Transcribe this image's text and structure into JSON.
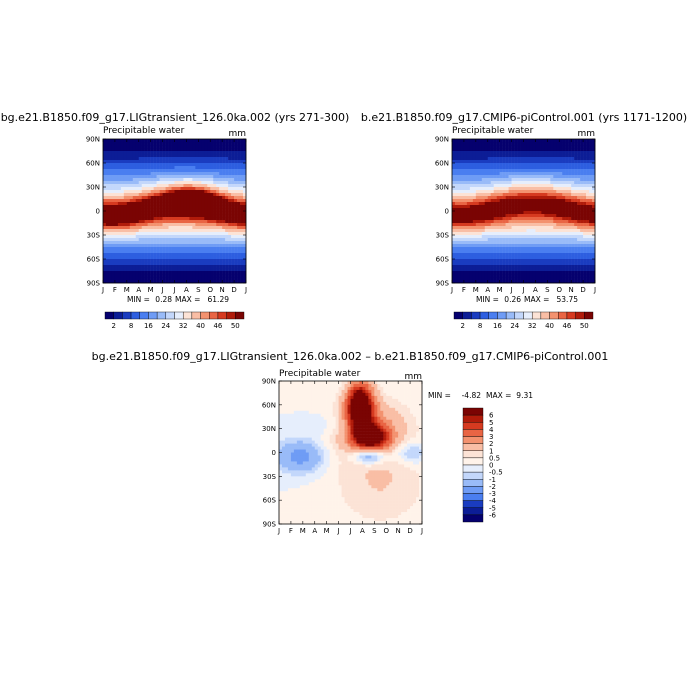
{
  "chart_data": [
    {
      "type": "heatmap",
      "title": "bg.e21.B1850.f09_g17.LIGtransient_126.0ka.002 (yrs 271-300)",
      "variable": "Precipitable water",
      "units": "mm",
      "x_tick_labels": [
        "J",
        "F",
        "M",
        "A",
        "M",
        "J",
        "J",
        "A",
        "S",
        "O",
        "N",
        "D",
        "J"
      ],
      "y_tick_labels": [
        "90N",
        "60N",
        "30N",
        "0",
        "30S",
        "60S",
        "90S"
      ],
      "y_range": [
        -90,
        90
      ],
      "min_label": "MIN =",
      "min_value": "0.28",
      "max_label": "MAX =",
      "max_value": "61.29",
      "colorbar_levels": [
        "2",
        "8",
        "16",
        "24",
        "32",
        "40",
        "46",
        "50"
      ],
      "colors": [
        "#05006e",
        "#0c1d96",
        "#1a3cc0",
        "#2d5ee0",
        "#4a7ef0",
        "#6f9cf5",
        "#99bbf8",
        "#c3d7fb",
        "#e6eefc",
        "#fce3d6",
        "#f9bea5",
        "#f3926f",
        "#e96544",
        "#d63a20",
        "#b01b0a",
        "#7a0403"
      ]
    },
    {
      "type": "heatmap",
      "title": "b.e21.B1850.f09_g17.CMIP6-piControl.001 (yrs 1171-1200)",
      "variable": "Precipitable water",
      "units": "mm",
      "x_tick_labels": [
        "J",
        "F",
        "M",
        "A",
        "M",
        "J",
        "J",
        "A",
        "S",
        "O",
        "N",
        "D",
        "J"
      ],
      "y_tick_labels": [
        "90N",
        "60N",
        "30N",
        "0",
        "30S",
        "60S",
        "90S"
      ],
      "y_range": [
        -90,
        90
      ],
      "min_label": "MIN =",
      "min_value": "0.26",
      "max_label": "MAX =",
      "max_value": "53.75",
      "colorbar_levels": [
        "2",
        "8",
        "16",
        "24",
        "32",
        "40",
        "46",
        "50"
      ],
      "colors": [
        "#05006e",
        "#0c1d96",
        "#1a3cc0",
        "#2d5ee0",
        "#4a7ef0",
        "#6f9cf5",
        "#99bbf8",
        "#c3d7fb",
        "#e6eefc",
        "#fce3d6",
        "#f9bea5",
        "#f3926f",
        "#e96544",
        "#d63a20",
        "#b01b0a",
        "#7a0403"
      ]
    },
    {
      "type": "heatmap",
      "title": "bg.e21.B1850.f09_g17.LIGtransient_126.0ka.002 – b.e21.B1850.f09_g17.CMIP6-piControl.001",
      "variable": "Precipitable water",
      "units": "mm",
      "x_tick_labels": [
        "J",
        "F",
        "M",
        "A",
        "M",
        "J",
        "J",
        "A",
        "S",
        "O",
        "N",
        "D",
        "J"
      ],
      "y_tick_labels": [
        "90N",
        "60N",
        "30N",
        "0",
        "30S",
        "60S",
        "90S"
      ],
      "y_range": [
        -90,
        90
      ],
      "min_label": "MIN =",
      "min_value": "-4.82",
      "max_label": "MAX =",
      "max_value": "9.31",
      "colorbar_levels": [
        "6",
        "5",
        "4",
        "3",
        "2",
        "1",
        "0.5",
        "0",
        "-0.5",
        "-1",
        "-2",
        "-3",
        "-4",
        "-5",
        "-6"
      ],
      "colors": [
        "#7a0403",
        "#b01b0a",
        "#d63a20",
        "#e96544",
        "#f3926f",
        "#f9bea5",
        "#fce3d6",
        "#fff3ea",
        "#e6eefc",
        "#c3d7fb",
        "#99bbf8",
        "#6f9cf5",
        "#4a7ef0",
        "#1a3cc0",
        "#0c1d96",
        "#05006e"
      ]
    }
  ]
}
